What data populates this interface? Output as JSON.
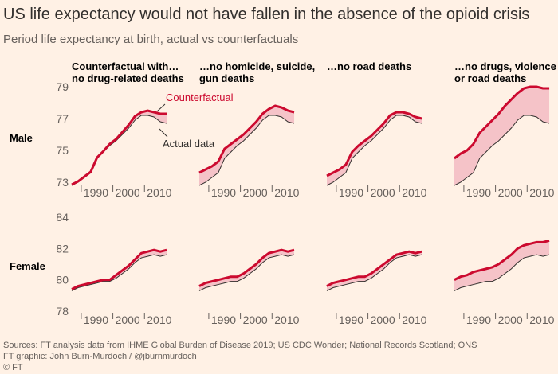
{
  "title": "US life expectancy would not have fallen in the absence of the opioid crisis",
  "subtitle": "Period life expectancy at birth, actual vs counterfactuals",
  "sources": [
    "Sources: FT analysis data from IHME Global Burden of Disease 2019; US CDC Wonder; National Records Scotland; ONS",
    "FT graphic: John Burn-Murdoch / @jburnmurdoch",
    "© FT"
  ],
  "chart_data": [
    {
      "type": "line",
      "row_label": "Male",
      "title": [
        "Counterfactual with…",
        "no drug-related deaths"
      ],
      "x": [
        1987,
        1989,
        1991,
        1993,
        1995,
        1997,
        1999,
        2001,
        2003,
        2005,
        2007,
        2009,
        2011,
        2013,
        2015,
        2017
      ],
      "xlim": [
        1987,
        2018.5
      ],
      "xticks": [
        1990,
        2000,
        2010
      ],
      "ylim": [
        72.8,
        79.3
      ],
      "yticks": [
        73,
        75,
        77,
        79
      ],
      "series": [
        {
          "name": "Actual data",
          "color": "#33302e",
          "values": [
            72.8,
            73.0,
            73.3,
            73.6,
            74.5,
            74.9,
            75.3,
            75.6,
            76.0,
            76.4,
            76.9,
            77.2,
            77.2,
            77.1,
            76.8,
            76.7
          ]
        },
        {
          "name": "Counterfactual",
          "color": "#cc0a2f",
          "values": [
            72.85,
            73.05,
            73.35,
            73.65,
            74.55,
            74.95,
            75.4,
            75.7,
            76.15,
            76.6,
            77.15,
            77.4,
            77.5,
            77.4,
            77.3,
            77.3
          ]
        }
      ]
    },
    {
      "type": "line",
      "title": [
        "…no homicide, suicide,",
        "gun deaths"
      ],
      "x": [
        1987,
        1989,
        1991,
        1993,
        1995,
        1997,
        1999,
        2001,
        2003,
        2005,
        2007,
        2009,
        2011,
        2013,
        2015,
        2017
      ],
      "xlim": [
        1987,
        2018.5
      ],
      "xticks": [
        1990,
        2000,
        2010
      ],
      "ylim": [
        72.8,
        79.3
      ],
      "series": [
        {
          "color": "#33302e",
          "values": [
            72.8,
            73.0,
            73.3,
            73.6,
            74.5,
            74.9,
            75.3,
            75.6,
            76.0,
            76.4,
            76.9,
            77.2,
            77.2,
            77.1,
            76.8,
            76.7
          ]
        },
        {
          "color": "#cc0a2f",
          "values": [
            73.6,
            73.8,
            74.0,
            74.3,
            75.1,
            75.4,
            75.7,
            76.0,
            76.4,
            76.8,
            77.3,
            77.6,
            77.8,
            77.7,
            77.5,
            77.4
          ]
        }
      ]
    },
    {
      "type": "line",
      "title": [
        "…no road deaths"
      ],
      "x": [
        1987,
        1989,
        1991,
        1993,
        1995,
        1997,
        1999,
        2001,
        2003,
        2005,
        2007,
        2009,
        2011,
        2013,
        2015,
        2017
      ],
      "xlim": [
        1987,
        2018.5
      ],
      "xticks": [
        1990,
        2000,
        2010
      ],
      "ylim": [
        72.8,
        79.3
      ],
      "series": [
        {
          "color": "#33302e",
          "values": [
            72.8,
            73.0,
            73.3,
            73.6,
            74.5,
            74.9,
            75.3,
            75.6,
            76.0,
            76.4,
            76.9,
            77.2,
            77.2,
            77.1,
            76.8,
            76.7
          ]
        },
        {
          "color": "#cc0a2f",
          "values": [
            73.4,
            73.6,
            73.8,
            74.1,
            74.9,
            75.3,
            75.6,
            75.9,
            76.3,
            76.7,
            77.2,
            77.4,
            77.4,
            77.3,
            77.1,
            77.0
          ]
        }
      ]
    },
    {
      "type": "line",
      "title": [
        "…no drugs, violence",
        "or road deaths"
      ],
      "x": [
        1987,
        1989,
        1991,
        1993,
        1995,
        1997,
        1999,
        2001,
        2003,
        2005,
        2007,
        2009,
        2011,
        2013,
        2015,
        2017
      ],
      "xlim": [
        1987,
        2018.5
      ],
      "xticks": [
        1990,
        2000,
        2010
      ],
      "ylim": [
        72.8,
        79.3
      ],
      "series": [
        {
          "color": "#33302e",
          "values": [
            72.8,
            73.0,
            73.3,
            73.6,
            74.5,
            74.9,
            75.3,
            75.6,
            76.0,
            76.4,
            76.9,
            77.2,
            77.2,
            77.1,
            76.8,
            76.7
          ]
        },
        {
          "color": "#cc0a2f",
          "values": [
            74.5,
            74.8,
            75.0,
            75.4,
            76.1,
            76.5,
            76.9,
            77.3,
            77.8,
            78.2,
            78.6,
            78.9,
            79.0,
            79.0,
            78.9,
            78.9
          ]
        }
      ]
    },
    {
      "type": "line",
      "row_label": "Female",
      "x": [
        1987,
        1989,
        1991,
        1993,
        1995,
        1997,
        1999,
        2001,
        2003,
        2005,
        2007,
        2009,
        2011,
        2013,
        2015,
        2017
      ],
      "xlim": [
        1987,
        2018.5
      ],
      "xticks": [
        1990,
        2000,
        2010
      ],
      "ylim": [
        77.9,
        84.4
      ],
      "yticks": [
        78,
        80,
        82,
        84
      ],
      "series": [
        {
          "color": "#33302e",
          "values": [
            79.3,
            79.5,
            79.6,
            79.7,
            79.8,
            79.9,
            79.9,
            80.1,
            80.4,
            80.7,
            81.1,
            81.4,
            81.5,
            81.6,
            81.5,
            81.6
          ]
        },
        {
          "color": "#cc0a2f",
          "values": [
            79.4,
            79.6,
            79.7,
            79.8,
            79.9,
            80.0,
            80.0,
            80.3,
            80.6,
            80.9,
            81.3,
            81.7,
            81.8,
            81.9,
            81.8,
            81.9
          ]
        }
      ]
    },
    {
      "type": "line",
      "x": [
        1987,
        1989,
        1991,
        1993,
        1995,
        1997,
        1999,
        2001,
        2003,
        2005,
        2007,
        2009,
        2011,
        2013,
        2015,
        2017
      ],
      "xlim": [
        1987,
        2018.5
      ],
      "xticks": [
        1990,
        2000,
        2010
      ],
      "ylim": [
        77.9,
        84.4
      ],
      "series": [
        {
          "color": "#33302e",
          "values": [
            79.3,
            79.5,
            79.6,
            79.7,
            79.8,
            79.9,
            79.9,
            80.1,
            80.4,
            80.7,
            81.1,
            81.4,
            81.5,
            81.6,
            81.5,
            81.6
          ]
        },
        {
          "color": "#cc0a2f",
          "values": [
            79.6,
            79.8,
            79.9,
            80.0,
            80.1,
            80.2,
            80.2,
            80.4,
            80.7,
            81.0,
            81.4,
            81.7,
            81.8,
            81.9,
            81.8,
            81.9
          ]
        }
      ]
    },
    {
      "type": "line",
      "x": [
        1987,
        1989,
        1991,
        1993,
        1995,
        1997,
        1999,
        2001,
        2003,
        2005,
        2007,
        2009,
        2011,
        2013,
        2015,
        2017
      ],
      "xlim": [
        1987,
        2018.5
      ],
      "xticks": [
        1990,
        2000,
        2010
      ],
      "ylim": [
        77.9,
        84.4
      ],
      "series": [
        {
          "color": "#33302e",
          "values": [
            79.3,
            79.5,
            79.6,
            79.7,
            79.8,
            79.9,
            79.9,
            80.1,
            80.4,
            80.7,
            81.1,
            81.4,
            81.5,
            81.6,
            81.5,
            81.6
          ]
        },
        {
          "color": "#cc0a2f",
          "values": [
            79.6,
            79.8,
            79.9,
            80.0,
            80.1,
            80.2,
            80.2,
            80.4,
            80.7,
            81.0,
            81.3,
            81.6,
            81.7,
            81.8,
            81.7,
            81.8
          ]
        }
      ]
    },
    {
      "type": "line",
      "x": [
        1987,
        1989,
        1991,
        1993,
        1995,
        1997,
        1999,
        2001,
        2003,
        2005,
        2007,
        2009,
        2011,
        2013,
        2015,
        2017
      ],
      "xlim": [
        1987,
        2018.5
      ],
      "xticks": [
        1990,
        2000,
        2010
      ],
      "ylim": [
        77.9,
        84.4
      ],
      "series": [
        {
          "color": "#33302e",
          "values": [
            79.3,
            79.5,
            79.6,
            79.7,
            79.8,
            79.9,
            79.9,
            80.1,
            80.4,
            80.7,
            81.1,
            81.4,
            81.5,
            81.6,
            81.5,
            81.6
          ]
        },
        {
          "color": "#cc0a2f",
          "values": [
            80.0,
            80.2,
            80.3,
            80.5,
            80.6,
            80.7,
            80.8,
            81.0,
            81.3,
            81.6,
            82.0,
            82.2,
            82.3,
            82.4,
            82.4,
            82.5
          ]
        }
      ]
    }
  ]
}
